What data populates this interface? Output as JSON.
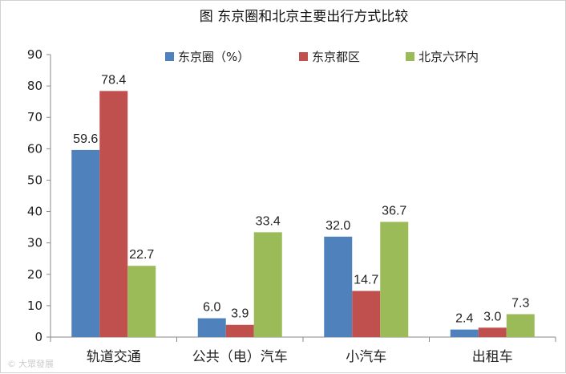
{
  "chart_data": {
    "type": "bar",
    "title": "图   东京圈和北京主要出行方式比较",
    "categories": [
      "轨道交通",
      "公共（电）汽车",
      "小汽车",
      "出租车"
    ],
    "series": [
      {
        "name": "东京圈（%）",
        "color": "#4f81bd",
        "values": [
          59.6,
          6.0,
          32.0,
          2.4
        ]
      },
      {
        "name": "东京都区",
        "color": "#c0504d",
        "values": [
          78.4,
          3.9,
          14.7,
          3.0
        ]
      },
      {
        "name": "北京六环内",
        "color": "#9bbb59",
        "values": [
          22.7,
          33.4,
          36.7,
          7.3
        ]
      }
    ],
    "ylim": [
      0,
      90
    ],
    "yticks": [
      0,
      10,
      20,
      30,
      40,
      50,
      60,
      70,
      80,
      90
    ],
    "xlabel": "",
    "ylabel": "",
    "grid": false,
    "legend_position": "top"
  },
  "watermark": "大眾發展"
}
